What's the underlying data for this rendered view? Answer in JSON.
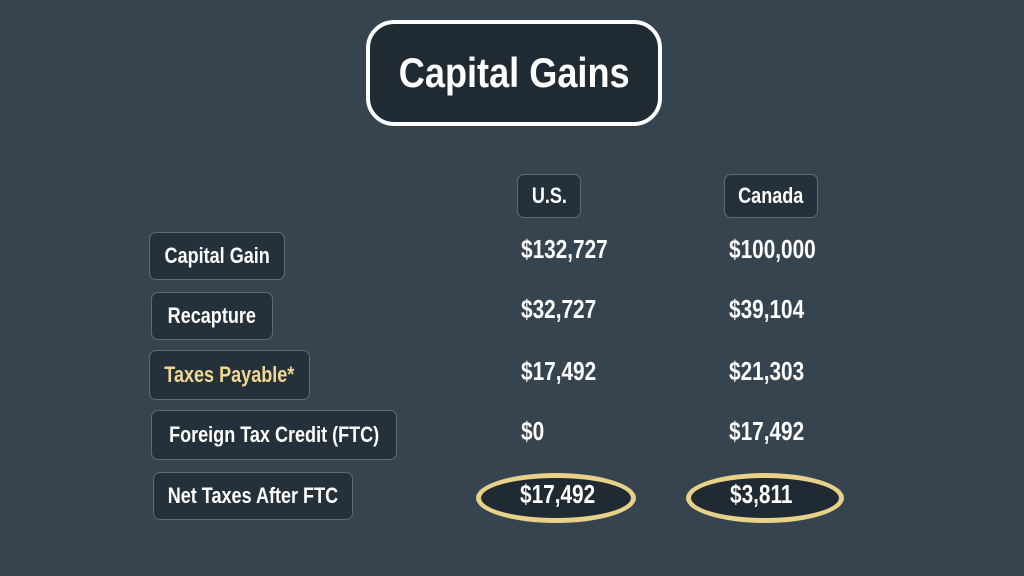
{
  "title": "Capital Gains",
  "columns": [
    "U.S.",
    "Canada"
  ],
  "rows": [
    {
      "label": "Capital Gain",
      "us": "$132,727",
      "canada": "$100,000"
    },
    {
      "label": "Recapture",
      "us": "$32,727",
      "canada": "$39,104"
    },
    {
      "label": "Taxes Payable*",
      "us": "$17,492",
      "canada": "$21,303"
    },
    {
      "label": "Foreign Tax Credit (FTC)",
      "us": "$0",
      "canada": "$17,492"
    },
    {
      "label": "Net Taxes After FTC",
      "us": "$17,492",
      "canada": "$3,811"
    }
  ],
  "colors": {
    "background": "#36444f",
    "highlight": "#e9d18a",
    "chip": "#24313b"
  }
}
